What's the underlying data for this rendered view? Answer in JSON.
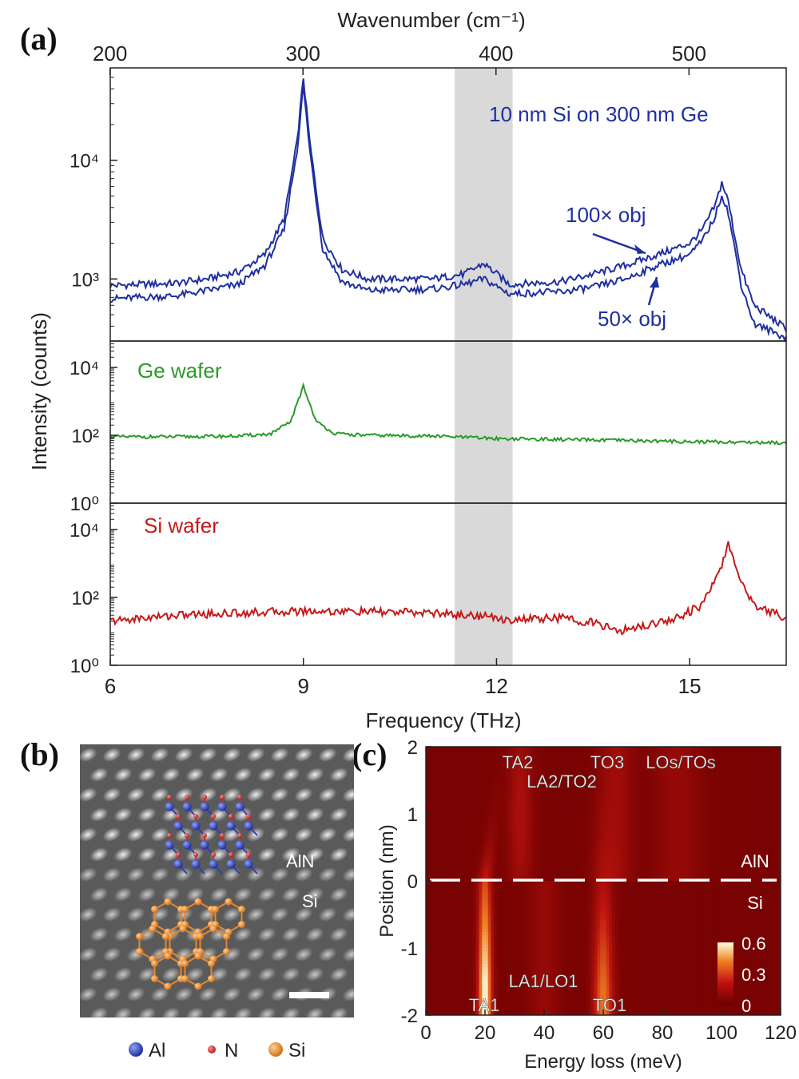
{
  "panels": {
    "a": {
      "label": "(a)"
    },
    "b": {
      "label": "(b)"
    },
    "c": {
      "label": "(c)"
    }
  },
  "chart_data": [
    {
      "id": "a",
      "type": "line",
      "xlabel": "Frequency (THz)",
      "x_top_label": "Wavenumber (cm⁻¹)",
      "ylabel": "Intensity (counts)",
      "xlim": [
        6,
        16.5
      ],
      "xticks": [
        "6",
        "9",
        "12",
        "15"
      ],
      "xticks_top": [
        "200",
        "300",
        "400",
        "500"
      ],
      "y_scale": "log",
      "shaded_band_thz": [
        11.35,
        12.25
      ],
      "subplots": [
        {
          "name": "top",
          "annotation": "10 nm Si on 300 nm Ge",
          "ylim": [
            300,
            60000
          ],
          "yticks": [
            "10³",
            "10⁴"
          ],
          "color": "#1f2fa0",
          "series": [
            {
              "name": "100× obj",
              "x": [
                6,
                7,
                7.5,
                8,
                8.4,
                8.7,
                8.9,
                9.0,
                9.1,
                9.3,
                9.6,
                10,
                11,
                11.5,
                11.8,
                12.2,
                13,
                13.5,
                14,
                14.5,
                15,
                15.2,
                15.4,
                15.5,
                15.6,
                15.8,
                16,
                16.5
              ],
              "y": [
                880,
                920,
                1000,
                1150,
                1600,
                3200,
                14000,
                50000,
                14000,
                2200,
                1200,
                1000,
                1000,
                1100,
                1350,
                900,
                950,
                1100,
                1300,
                1600,
                2000,
                2600,
                4200,
                6500,
                4500,
                1200,
                600,
                380
              ]
            },
            {
              "name": "50× obj",
              "x": [
                6,
                7,
                7.5,
                8,
                8.4,
                8.7,
                8.9,
                9.0,
                9.1,
                9.3,
                9.6,
                10,
                11,
                11.5,
                11.8,
                12.2,
                13,
                13.5,
                14,
                14.5,
                15,
                15.2,
                15.4,
                15.5,
                15.6,
                15.8,
                16,
                16.5
              ],
              "y": [
                680,
                720,
                800,
                900,
                1300,
                2600,
                12000,
                42000,
                12000,
                1800,
                950,
                800,
                820,
                900,
                1000,
                750,
                780,
                850,
                1000,
                1300,
                1600,
                2100,
                3400,
                5200,
                3600,
                900,
                420,
                320
              ]
            }
          ]
        },
        {
          "name": "middle",
          "annotation": "Ge wafer",
          "ylim": [
            1,
            60000
          ],
          "yticks": [
            "10⁰",
            "10²",
            "10⁴"
          ],
          "color": "#2a9a2a",
          "series": [
            {
              "name": "Ge wafer",
              "x": [
                6,
                7,
                8,
                8.5,
                8.8,
                8.95,
                9.0,
                9.05,
                9.2,
                9.5,
                10,
                11,
                12,
                13,
                14,
                15,
                16,
                16.5
              ],
              "y": [
                90,
                90,
                95,
                110,
                250,
                1500,
                3000,
                1500,
                250,
                110,
                100,
                95,
                80,
                75,
                70,
                65,
                62,
                60
              ]
            }
          ]
        },
        {
          "name": "bottom",
          "annotation": "Si wafer",
          "ylim": [
            1,
            60000
          ],
          "yticks": [
            "10⁰",
            "10²",
            "10⁴"
          ],
          "color": "#c41a1a",
          "series": [
            {
              "name": "Si wafer",
              "x": [
                6,
                7,
                8,
                9,
                10,
                11,
                11.8,
                12.2,
                13,
                13.5,
                13.9,
                14.3,
                14.8,
                15.2,
                15.45,
                15.6,
                15.75,
                16,
                16.5
              ],
              "y": [
                20,
                30,
                35,
                40,
                38,
                35,
                28,
                22,
                25,
                18,
                10,
                15,
                25,
                60,
                500,
                3500,
                500,
                60,
                25
              ]
            }
          ]
        }
      ]
    },
    {
      "id": "c",
      "type": "heatmap",
      "xlabel": "Energy loss (meV)",
      "ylabel": "Position (nm)",
      "xlim": [
        0,
        120
      ],
      "ylim": [
        -2,
        2
      ],
      "xticks": [
        "0",
        "20",
        "40",
        "60",
        "80",
        "100",
        "120"
      ],
      "yticks": [
        "-2",
        "-1",
        "0",
        "1",
        "2"
      ],
      "colorbar": {
        "ticks": [
          "0",
          "0.3",
          "0.6"
        ],
        "min": 0,
        "max": 0.6
      },
      "interface_label_top": "AlN",
      "interface_label_bottom": "Si",
      "peak_labels": [
        "TA2",
        "LA2/TO2",
        "TO3",
        "LOs/TOs",
        "TA1",
        "LA1/LO1",
        "TO1"
      ]
    }
  ],
  "micrograph": {
    "label_top": "AlN",
    "label_bottom": "Si",
    "legend": [
      {
        "name": "Al",
        "color": "#2a3fb0"
      },
      {
        "name": "N",
        "color": "#d42a2a"
      },
      {
        "name": "Si",
        "color": "#e8862a"
      }
    ]
  }
}
